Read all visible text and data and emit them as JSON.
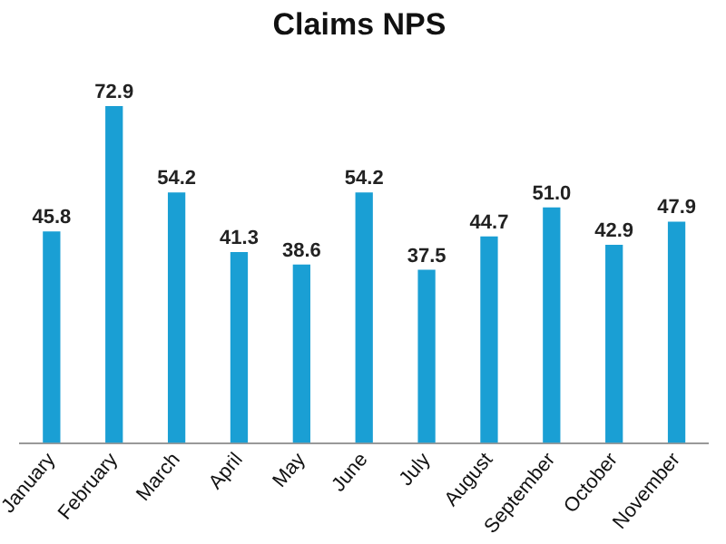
{
  "chart_data": {
    "type": "bar",
    "title": "Claims NPS",
    "categories": [
      "January",
      "February",
      "March",
      "April",
      "May",
      "June",
      "July",
      "August",
      "September",
      "October",
      "November"
    ],
    "values": [
      45.8,
      72.9,
      54.2,
      41.3,
      38.6,
      54.2,
      37.5,
      44.7,
      51.0,
      42.9,
      47.9
    ],
    "value_labels": [
      "45.8",
      "72.9",
      "54.2",
      "41.3",
      "38.6",
      "54.2",
      "37.5",
      "44.7",
      "51.0",
      "42.9",
      "47.9"
    ],
    "color": "#1a9fd4",
    "grid": false,
    "legend": false
  }
}
